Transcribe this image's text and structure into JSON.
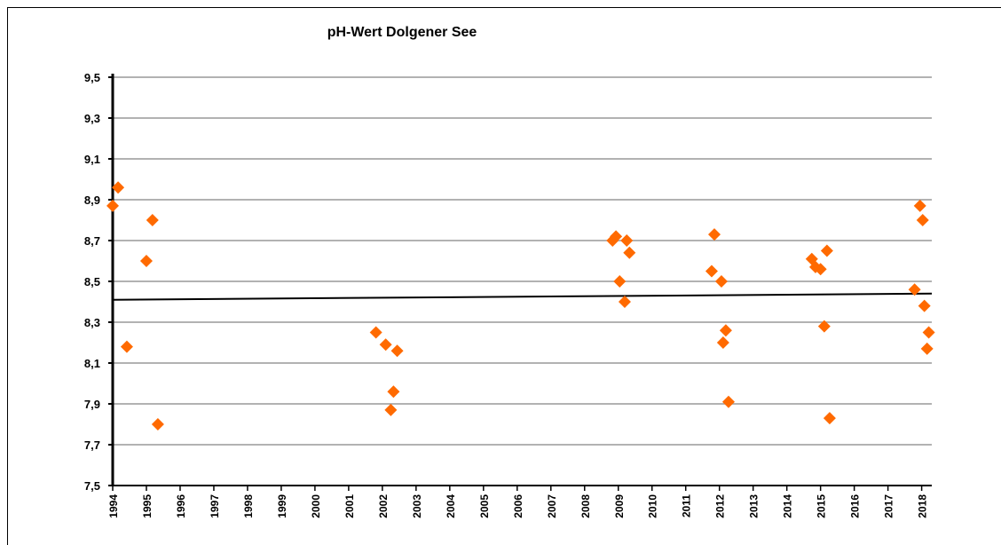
{
  "chart_data": {
    "type": "scatter",
    "title": "pH-Wert  Dolgener See",
    "series": [
      {
        "color": "#ff6a00",
        "x": [
          1994.0,
          1994.16,
          1994.42,
          1995.0,
          1995.18,
          1995.34,
          2001.81,
          2002.1,
          2002.44,
          2002.33,
          2002.25,
          2008.83,
          2008.93,
          2009.25,
          2009.33,
          2009.04,
          2009.19,
          2011.85,
          2011.77,
          2012.06,
          2012.19,
          2012.11,
          2012.27,
          2014.74,
          2014.85,
          2015.0,
          2015.19,
          2015.11,
          2015.27,
          2017.95,
          2018.03,
          2017.79,
          2018.08,
          2018.21,
          2018.16
        ],
        "values": [
          8.87,
          8.96,
          8.18,
          8.6,
          8.8,
          7.8,
          8.25,
          8.19,
          8.16,
          7.96,
          7.87,
          8.7,
          8.72,
          8.7,
          8.64,
          8.5,
          8.4,
          8.73,
          8.55,
          8.5,
          8.26,
          8.2,
          7.91,
          8.61,
          8.57,
          8.56,
          8.65,
          8.28,
          7.83,
          8.87,
          8.8,
          8.46,
          8.38,
          8.25,
          8.17
        ]
      }
    ],
    "trend": {
      "x": [
        1994,
        2018.3
      ],
      "values": [
        8.41,
        8.44
      ],
      "color": "#000000"
    },
    "xlim": [
      1994,
      2018.3
    ],
    "xticks": [
      1994,
      1995,
      1996,
      1997,
      1998,
      1999,
      2000,
      2001,
      2002,
      2003,
      2004,
      2005,
      2006,
      2007,
      2008,
      2009,
      2010,
      2011,
      2012,
      2013,
      2014,
      2015,
      2016,
      2017,
      2018
    ],
    "ylim": [
      7.5,
      9.5
    ],
    "yticks": [
      {
        "value": 7.5,
        "label": "7,5"
      },
      {
        "value": 7.7,
        "label": "7,7"
      },
      {
        "value": 7.9,
        "label": "7,9"
      },
      {
        "value": 8.1,
        "label": "8,1"
      },
      {
        "value": 8.3,
        "label": "8,3"
      },
      {
        "value": 8.5,
        "label": "8,5"
      },
      {
        "value": 8.7,
        "label": "8,7"
      },
      {
        "value": 8.9,
        "label": "8,9"
      },
      {
        "value": 9.1,
        "label": "9,1"
      },
      {
        "value": 9.3,
        "label": "9,3"
      },
      {
        "value": 9.5,
        "label": "9,5"
      }
    ],
    "grid": true
  }
}
